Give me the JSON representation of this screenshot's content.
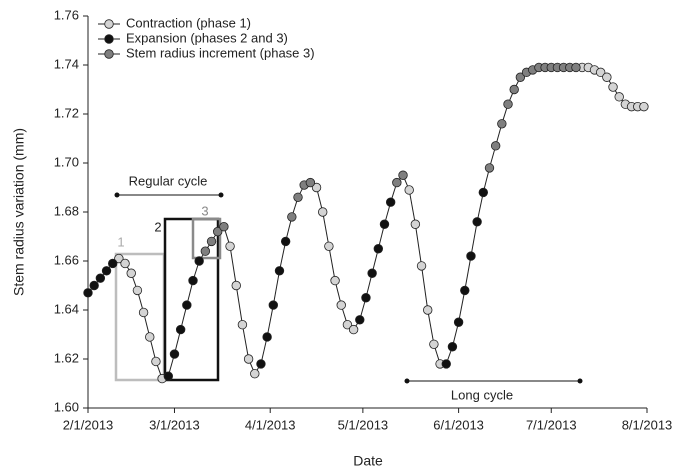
{
  "chart_data": {
    "type": "line",
    "x_label": "Date",
    "y_label": "Stem radius variation (mm)",
    "x": [
      "2/1/2013",
      "2/3/2013",
      "2/5/2013",
      "2/7/2013",
      "2/9/2013",
      "2/11/2013",
      "2/13/2013",
      "2/15/2013",
      "2/17/2013",
      "2/19/2013",
      "2/21/2013",
      "2/23/2013",
      "2/25/2013",
      "2/27/2013",
      "3/1/2013",
      "3/3/2013",
      "3/5/2013",
      "3/7/2013",
      "3/9/2013",
      "3/11/2013",
      "3/13/2013",
      "3/15/2013",
      "3/17/2013",
      "3/19/2013",
      "3/21/2013",
      "3/23/2013",
      "3/25/2013",
      "3/27/2013",
      "3/29/2013",
      "3/31/2013",
      "4/2/2013",
      "4/4/2013",
      "4/6/2013",
      "4/8/2013",
      "4/10/2013",
      "4/12/2013",
      "4/14/2013",
      "4/16/2013",
      "4/18/2013",
      "4/20/2013",
      "4/22/2013",
      "4/24/2013",
      "4/26/2013",
      "4/28/2013",
      "4/30/2013",
      "5/2/2013",
      "5/4/2013",
      "5/6/2013",
      "5/8/2013",
      "5/10/2013",
      "5/12/2013",
      "5/14/2013",
      "5/16/2013",
      "5/18/2013",
      "5/20/2013",
      "5/22/2013",
      "5/24/2013",
      "5/26/2013",
      "5/28/2013",
      "5/30/2013",
      "6/1/2013",
      "6/3/2013",
      "6/5/2013",
      "6/7/2013",
      "6/9/2013",
      "6/11/2013",
      "6/13/2013",
      "6/15/2013",
      "6/17/2013",
      "6/19/2013",
      "6/21/2013",
      "6/23/2013",
      "6/25/2013",
      "6/27/2013",
      "6/29/2013",
      "7/1/2013",
      "7/3/2013",
      "7/5/2013",
      "7/7/2013",
      "7/9/2013",
      "7/11/2013",
      "7/13/2013",
      "7/15/2013",
      "7/17/2013",
      "7/19/2013",
      "7/21/2013",
      "7/23/2013",
      "7/25/2013",
      "7/27/2013",
      "7/29/2013",
      "7/31/2013"
    ],
    "series": [
      {
        "name": "Contraction (phase 1)",
        "color": "#d4d4d4",
        "values": [
          null,
          null,
          null,
          null,
          null,
          1.661,
          1.659,
          1.655,
          1.648,
          1.639,
          1.629,
          1.619,
          1.612,
          null,
          null,
          null,
          null,
          null,
          null,
          null,
          null,
          null,
          null,
          1.666,
          1.65,
          1.634,
          1.62,
          1.614,
          null,
          null,
          null,
          null,
          null,
          null,
          null,
          null,
          null,
          1.69,
          1.68,
          1.666,
          1.652,
          1.642,
          1.634,
          1.632,
          null,
          null,
          null,
          null,
          null,
          null,
          null,
          null,
          1.689,
          1.675,
          1.658,
          1.64,
          1.626,
          1.618,
          null,
          null,
          null,
          null,
          null,
          null,
          null,
          null,
          null,
          null,
          null,
          null,
          null,
          null,
          null,
          null,
          null,
          null,
          null,
          null,
          null,
          null,
          1.739,
          1.739,
          1.738,
          1.737,
          1.735,
          1.731,
          1.727,
          1.724,
          1.723,
          1.723,
          1.723
        ]
      },
      {
        "name": "Expansion (phases 2 and 3)",
        "color": "#111111",
        "values": [
          1.647,
          1.65,
          1.653,
          1.656,
          1.659,
          null,
          null,
          null,
          null,
          null,
          null,
          null,
          null,
          1.613,
          1.622,
          1.632,
          1.642,
          1.652,
          1.66,
          null,
          null,
          null,
          null,
          null,
          null,
          null,
          null,
          null,
          1.618,
          1.629,
          1.642,
          1.656,
          1.668,
          null,
          null,
          null,
          null,
          null,
          null,
          null,
          null,
          null,
          null,
          null,
          1.636,
          1.645,
          1.655,
          1.665,
          1.675,
          1.684,
          null,
          null,
          null,
          null,
          null,
          null,
          null,
          null,
          1.618,
          1.625,
          1.635,
          1.648,
          1.662,
          1.676,
          1.688,
          null,
          null,
          null,
          null,
          null,
          null,
          null,
          null,
          null,
          null,
          null,
          null,
          null,
          null,
          null,
          null,
          null,
          null,
          null,
          null,
          null,
          null,
          null,
          null,
          null,
          null
        ]
      },
      {
        "name": "Stem radius increment (phase 3)",
        "color": "#7f7f7f",
        "values": [
          null,
          null,
          null,
          null,
          null,
          null,
          null,
          null,
          null,
          null,
          null,
          null,
          null,
          null,
          null,
          null,
          null,
          null,
          null,
          1.664,
          1.668,
          1.672,
          1.674,
          null,
          null,
          null,
          null,
          null,
          null,
          null,
          null,
          null,
          null,
          1.678,
          1.686,
          1.691,
          1.692,
          null,
          null,
          null,
          null,
          null,
          null,
          null,
          null,
          null,
          null,
          null,
          null,
          null,
          1.692,
          1.695,
          null,
          null,
          null,
          null,
          null,
          null,
          null,
          null,
          null,
          null,
          null,
          null,
          null,
          1.698,
          1.707,
          1.716,
          1.724,
          1.73,
          1.735,
          1.737,
          1.738,
          1.739,
          1.739,
          1.739,
          1.739,
          1.739,
          1.739,
          1.739,
          null,
          null,
          null,
          null,
          null,
          null,
          null,
          null,
          null,
          null,
          null
        ]
      }
    ],
    "xlim": [
      "2/1/2013",
      "8/1/2013"
    ],
    "xticks": [
      "2/1/2013",
      "3/1/2013",
      "4/1/2013",
      "5/1/2013",
      "6/1/2013",
      "7/1/2013",
      "8/1/2013"
    ],
    "ylim": [
      1.6,
      1.76
    ],
    "yticks": [
      {
        "value": 1.6,
        "label": "1.60"
      },
      1.62,
      1.64,
      1.66,
      1.68,
      {
        "value": 1.7,
        "label": "1.70"
      },
      1.72,
      1.74,
      1.76
    ],
    "legend": "upper left",
    "annotations": {
      "regular_cycle": "Regular cycle",
      "long_cycle": "Long cycle",
      "box_1": "1",
      "box_2": "2",
      "box_3": "3"
    }
  }
}
